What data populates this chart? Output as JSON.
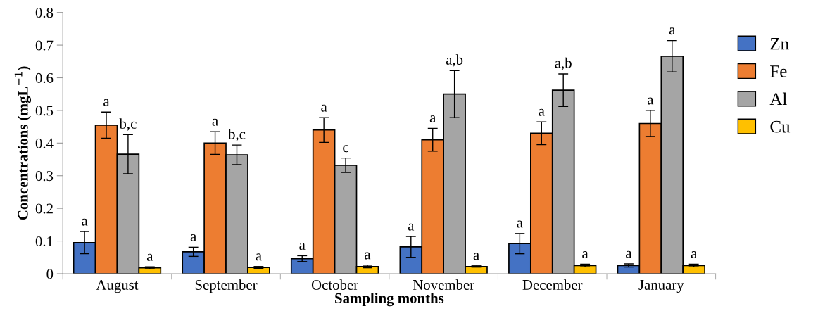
{
  "chart_data": {
    "type": "bar",
    "xlabel": "Sampling months",
    "ylabel": "Concentrations (mgL$^{−1}$)",
    "categories": [
      "August",
      "September",
      "October",
      "November",
      "December",
      "January"
    ],
    "series": [
      {
        "name": "Zn",
        "color": "#4472c4",
        "values": [
          0.095,
          0.067,
          0.046,
          0.082,
          0.092,
          0.025
        ],
        "errors": [
          0.034,
          0.014,
          0.009,
          0.032,
          0.031,
          0.005
        ],
        "value_labels": [
          "a",
          "a",
          "a",
          "a",
          "a",
          "a"
        ]
      },
      {
        "name": "Fe",
        "color": "#ed7d31",
        "values": [
          0.455,
          0.4,
          0.44,
          0.41,
          0.43,
          0.46
        ],
        "errors": [
          0.04,
          0.035,
          0.038,
          0.035,
          0.035,
          0.04
        ],
        "value_labels": [
          "a",
          "a",
          "a",
          "a",
          "a",
          "a"
        ]
      },
      {
        "name": "Al",
        "color": "#a5a5a5",
        "values": [
          0.366,
          0.364,
          0.332,
          0.55,
          0.562,
          0.666
        ],
        "errors": [
          0.06,
          0.03,
          0.022,
          0.072,
          0.05,
          0.048
        ],
        "value_labels": [
          "b,c",
          "b,c",
          "c",
          "a,b",
          "a,b",
          "a"
        ]
      },
      {
        "name": "Cu",
        "color": "#ffc000",
        "values": [
          0.018,
          0.019,
          0.022,
          0.022,
          0.025,
          0.025
        ],
        "errors": [
          0.003,
          0.003,
          0.004,
          0.002,
          0.004,
          0.004
        ],
        "value_labels": [
          "a",
          "a",
          "a",
          "a",
          "a",
          "a"
        ]
      }
    ],
    "ylim": [
      0,
      0.8
    ],
    "yticks": [
      0,
      0.1,
      0.2,
      0.3,
      0.4,
      0.5,
      0.6,
      0.7,
      0.8
    ],
    "grid": false,
    "legend": "right"
  }
}
